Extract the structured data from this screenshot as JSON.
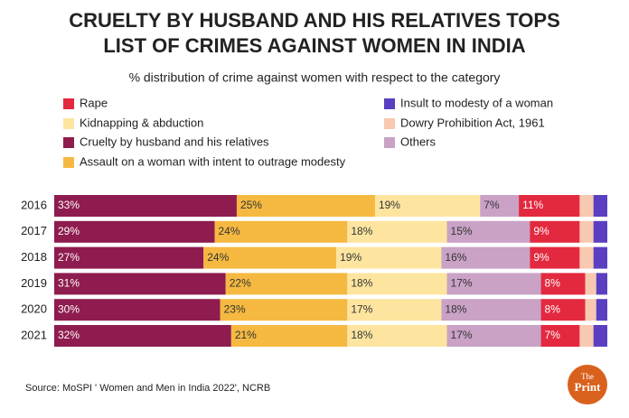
{
  "chart_data": {
    "type": "stacked-bar-horizontal",
    "title": [
      "CRUELTY BY HUSBAND AND HIS RELATIVES TOPS",
      "LIST OF CRIMES AGAINST WOMEN IN INDIA"
    ],
    "subtitle": "% distribution of crime against women with respect to the category",
    "categories": [
      "2016",
      "2017",
      "2018",
      "2019",
      "2020",
      "2021"
    ],
    "xlim": [
      0,
      100
    ],
    "series": [
      {
        "name": "Rape",
        "color": "#e3293f",
        "values": [
          11,
          9,
          9,
          8,
          8,
          7
        ],
        "value_labels": [
          "11%",
          "9%",
          "9%",
          "8%",
          "8%",
          "7%"
        ]
      },
      {
        "name": "Kidnapping & abduction",
        "color": "#fde5a0",
        "values": [
          19,
          18,
          19,
          18,
          17,
          18
        ],
        "value_labels": [
          "19%",
          "18%",
          "19%",
          "18%",
          "17%",
          "18%"
        ]
      },
      {
        "name": "Cruelty by husband and his relatives",
        "color": "#8e1c4e",
        "values": [
          33,
          29,
          27,
          31,
          30,
          32
        ],
        "value_labels": [
          "33%",
          "29%",
          "27%",
          "31%",
          "30%",
          "32%"
        ]
      },
      {
        "name": "Assault on a woman with intent to outrage modesty",
        "color": "#f5b941",
        "values": [
          25,
          24,
          24,
          22,
          23,
          21
        ],
        "value_labels": [
          "25%",
          "24%",
          "24%",
          "22%",
          "23%",
          "21%"
        ]
      },
      {
        "name": "Insult to modesty of a woman",
        "color": "#5a3fc0",
        "values": [
          2.5,
          2.5,
          2.5,
          2,
          2,
          2.5
        ]
      },
      {
        "name": "Dowry Prohibition Act, 1961",
        "color": "#f8c8b0",
        "values": [
          2.5,
          2.5,
          2.5,
          2,
          2,
          2.5
        ]
      },
      {
        "name": "Others",
        "color": "#c9a2c6",
        "values": [
          7,
          15,
          16,
          17,
          18,
          17
        ],
        "value_labels": [
          "7%",
          "15%",
          "16%",
          "17%",
          "18%",
          "17%"
        ]
      }
    ],
    "source": "Source: MoSPI ' Women and Men in India 2022', NCRB",
    "logo": [
      "The",
      "Print"
    ]
  }
}
